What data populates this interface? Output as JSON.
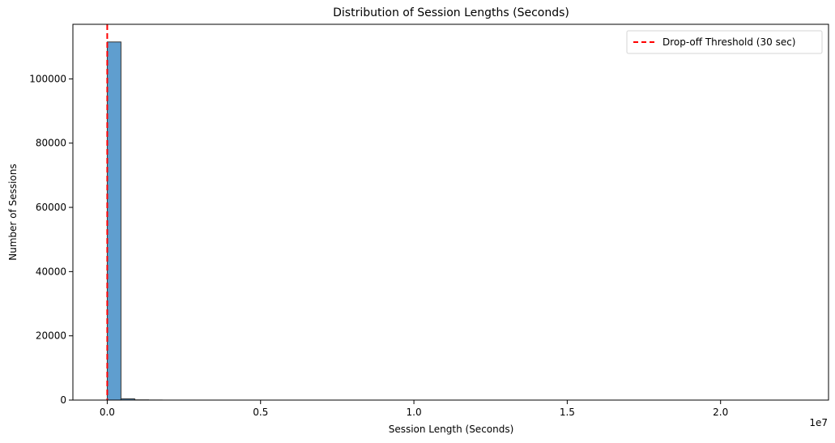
{
  "chart_data": {
    "type": "bar",
    "title": "Distribution of Session Lengths (Seconds)",
    "xlabel": "Session Length (Seconds)",
    "ylabel": "Number of Sessions",
    "x_offset_label": "1e7",
    "xlim": [
      -1120000,
      23520000
    ],
    "ylim": [
      0,
      117000
    ],
    "x_ticks": [
      {
        "value": 0,
        "label": "0.0"
      },
      {
        "value": 5000000,
        "label": "0.5"
      },
      {
        "value": 10000000,
        "label": "1.0"
      },
      {
        "value": 15000000,
        "label": "1.5"
      },
      {
        "value": 20000000,
        "label": "2.0"
      }
    ],
    "y_ticks": [
      {
        "value": 0,
        "label": "0"
      },
      {
        "value": 20000,
        "label": "20000"
      },
      {
        "value": 40000,
        "label": "40000"
      },
      {
        "value": 60000,
        "label": "60000"
      },
      {
        "value": 80000,
        "label": "80000"
      },
      {
        "value": 100000,
        "label": "100000"
      }
    ],
    "bins": [
      {
        "start": 0,
        "end": 448000,
        "count": 111500
      },
      {
        "start": 448000,
        "end": 896000,
        "count": 400
      },
      {
        "start": 896000,
        "end": 1344000,
        "count": 60
      },
      {
        "start": 1344000,
        "end": 1792000,
        "count": 20
      }
    ],
    "bar_color": "#5f9ecf",
    "bar_edge_color": "#333333",
    "threshold": {
      "value": 30,
      "label": "Drop-off Threshold (30 sec)",
      "color": "#ff0000"
    },
    "legend_position": "top-right",
    "grid": false
  }
}
